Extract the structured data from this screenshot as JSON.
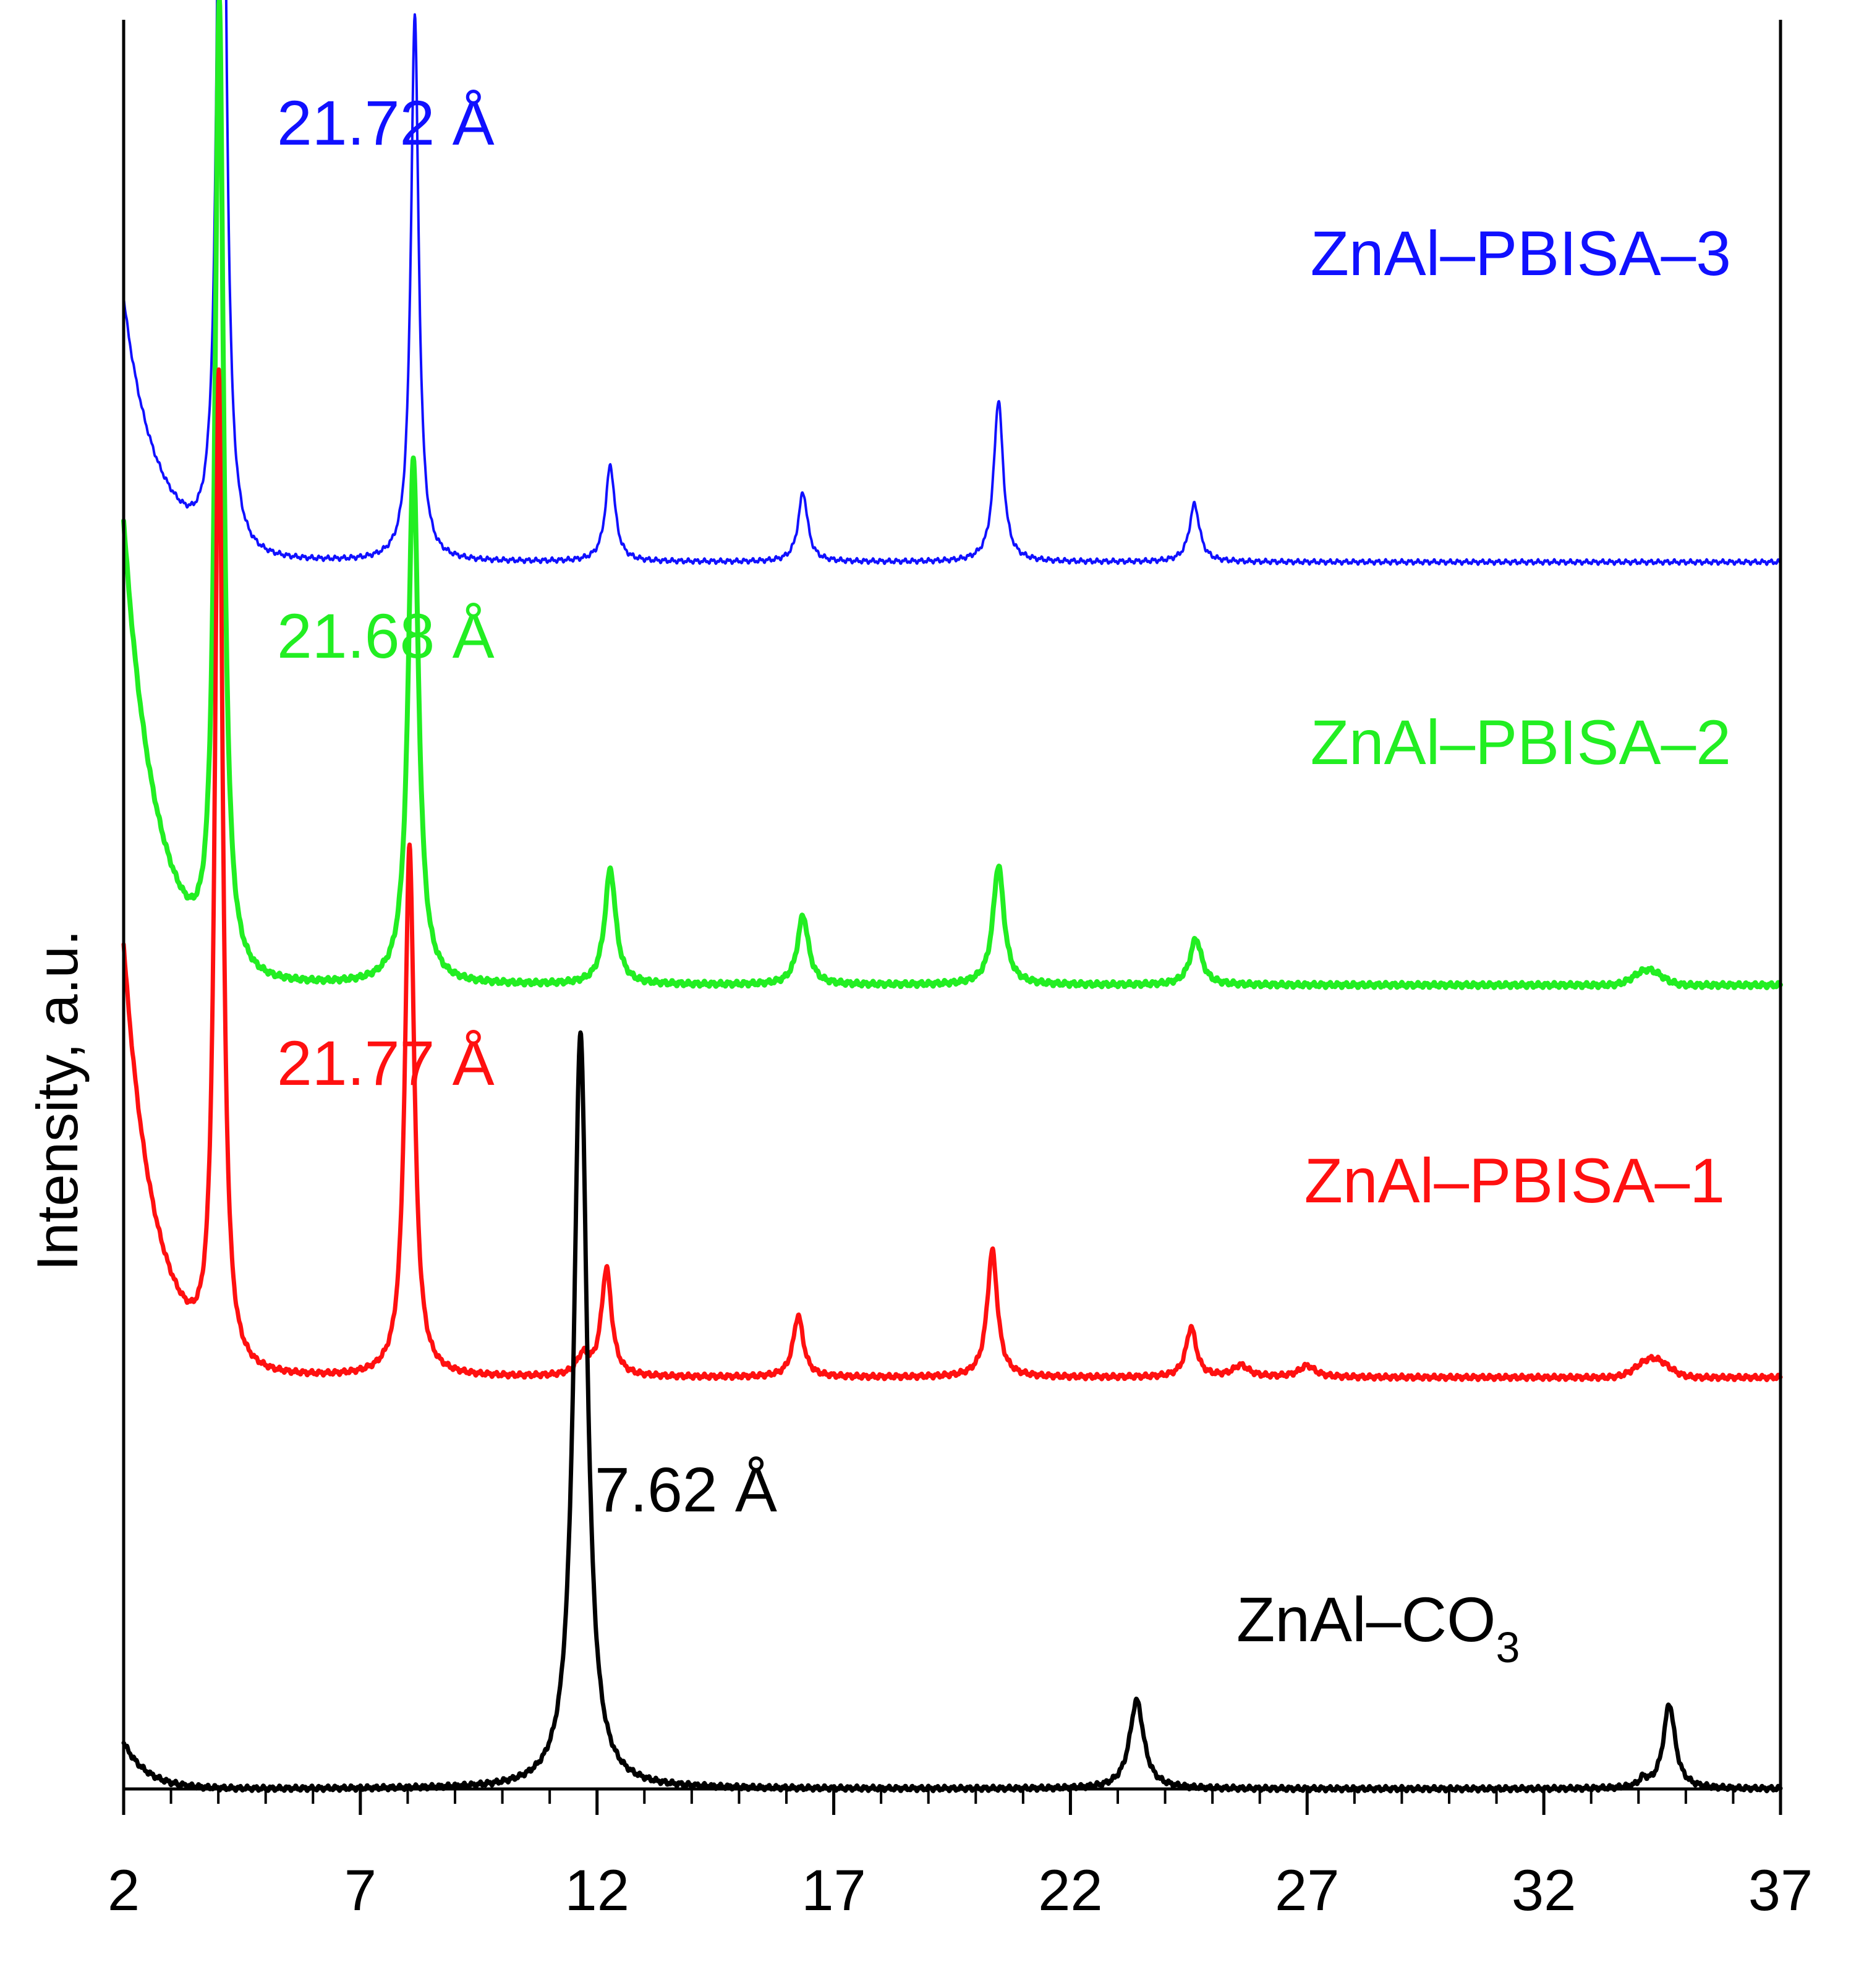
{
  "chart_data": {
    "type": "line",
    "title": "",
    "xlabel": "",
    "ylabel": "Intensity, a.u.",
    "xlim": [
      2,
      37
    ],
    "ylim": [
      0,
      4.6
    ],
    "x_ticks": [
      2,
      7,
      12,
      17,
      22,
      27,
      32,
      37
    ],
    "x_tick_labels": [
      "2",
      "7",
      "12",
      "17",
      "22",
      "27",
      "32",
      "37"
    ],
    "minor_tick_step": 1,
    "grid": false,
    "series": [
      {
        "key": "pbisa3",
        "name": "ZnAl–PBISA–3",
        "color": "#1010ff",
        "offset": 3.15,
        "baseline": 0.04,
        "bg_peak": 0.5,
        "bg_width": 0.55,
        "bg_floor": 0.18,
        "bg_dip_x": 3.3,
        "peaks": [
          {
            "x": 4.07,
            "y": 2.8,
            "w": 0.1
          },
          {
            "x": 8.15,
            "y": 1.42,
            "w": 0.1
          },
          {
            "x": 12.28,
            "y": 0.25,
            "w": 0.12
          },
          {
            "x": 16.35,
            "y": 0.18,
            "w": 0.12
          },
          {
            "x": 20.48,
            "y": 0.42,
            "w": 0.12
          },
          {
            "x": 24.62,
            "y": 0.15,
            "w": 0.13
          }
        ],
        "bumps": [],
        "annotation": "21.72 Å",
        "label_main": "ZnAl–PBISA–3",
        "label_sub": ""
      },
      {
        "key": "pbisa2",
        "name": "ZnAl–PBISA–2",
        "color": "#22ee22",
        "offset": 2.05,
        "baseline": 0.04,
        "bg_peak": 0.9,
        "bg_width": 0.55,
        "bg_floor": 0.3,
        "bg_dip_x": 3.3,
        "peaks": [
          {
            "x": 4.02,
            "y": 2.55,
            "w": 0.11
          },
          {
            "x": 8.12,
            "y": 1.37,
            "w": 0.13
          },
          {
            "x": 12.28,
            "y": 0.3,
            "w": 0.14
          },
          {
            "x": 16.35,
            "y": 0.18,
            "w": 0.14
          },
          {
            "x": 20.48,
            "y": 0.31,
            "w": 0.14
          },
          {
            "x": 24.65,
            "y": 0.12,
            "w": 0.15
          }
        ],
        "bumps": [
          {
            "x": 34.2,
            "y": 0.04,
            "w": 0.4
          }
        ],
        "annotation": "21.68 Å",
        "label_main": "ZnAl–PBISA–2",
        "label_sub": ""
      },
      {
        "key": "pbisa1",
        "name": "ZnAl–PBISA–1",
        "color": "#ff1010",
        "offset": 1.03,
        "baseline": 0.04,
        "bg_peak": 0.9,
        "bg_width": 0.55,
        "bg_floor": 0.22,
        "bg_dip_x": 3.3,
        "peaks": [
          {
            "x": 4.01,
            "y": 2.6,
            "w": 0.1
          },
          {
            "x": 8.04,
            "y": 1.38,
            "w": 0.12
          },
          {
            "x": 12.2,
            "y": 0.28,
            "w": 0.13
          },
          {
            "x": 11.7,
            "y": 0.05,
            "w": 0.15
          },
          {
            "x": 16.25,
            "y": 0.16,
            "w": 0.13
          },
          {
            "x": 20.35,
            "y": 0.33,
            "w": 0.13
          },
          {
            "x": 24.55,
            "y": 0.13,
            "w": 0.13
          },
          {
            "x": 25.6,
            "y": 0.03,
            "w": 0.2
          },
          {
            "x": 27.0,
            "y": 0.03,
            "w": 0.2
          }
        ],
        "bumps": [
          {
            "x": 34.3,
            "y": 0.05,
            "w": 0.45
          }
        ],
        "annotation": "21.77 Å",
        "label_main": "ZnAl–PBISA–1",
        "label_sub": ""
      },
      {
        "key": "co3",
        "name": "ZnAl–CO3",
        "color": "#000000",
        "offset": 0.0,
        "baseline": 0.0,
        "bg_peak": 0.12,
        "bg_width": 0.5,
        "bg_floor": 0.0,
        "bg_dip_x": 0,
        "peaks": [
          {
            "x": 11.65,
            "y": 1.97,
            "w": 0.17
          },
          {
            "x": 23.4,
            "y": 0.23,
            "w": 0.18
          },
          {
            "x": 34.65,
            "y": 0.22,
            "w": 0.15
          },
          {
            "x": 34.1,
            "y": 0.02,
            "w": 0.1
          }
        ],
        "bumps": [],
        "annotation": "7.62 Å",
        "label_main": "ZnAl–CO",
        "label_sub": "3"
      }
    ]
  }
}
